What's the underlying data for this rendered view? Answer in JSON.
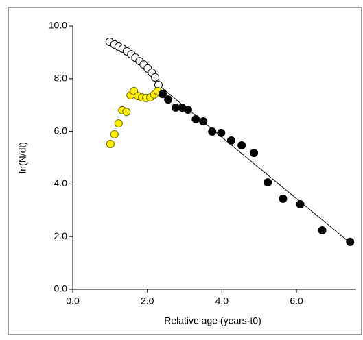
{
  "chart_data": {
    "type": "scatter",
    "xlabel": "Relative age (years-t0)",
    "ylabel": "ln(N/dt)",
    "xlim": [
      0,
      7.6
    ],
    "ylim": [
      0,
      10
    ],
    "xticks": [
      {
        "value": 0,
        "label": "0.0"
      },
      {
        "value": 2,
        "label": "2.0"
      },
      {
        "value": 4,
        "label": "4.0"
      },
      {
        "value": 6,
        "label": "6.0"
      }
    ],
    "yticks": [
      {
        "value": 0,
        "label": "0.0"
      },
      {
        "value": 2,
        "label": "2.0"
      },
      {
        "value": 4,
        "label": "4.0"
      },
      {
        "value": 6,
        "label": "6.0"
      },
      {
        "value": 8,
        "label": "8.0"
      },
      {
        "value": 10,
        "label": "10.0"
      }
    ],
    "series": [
      {
        "mode": "line",
        "color": "#000000",
        "x": [
          2.3,
          7.4
        ],
        "values": [
          7.76,
          1.81
        ]
      },
      {
        "mode": "markers",
        "color": "#ffffff",
        "edgecolor": "#000000",
        "x": [
          0.99,
          1.12,
          1.23,
          1.34,
          1.45,
          1.57,
          1.68,
          1.79,
          1.9,
          2.01,
          2.12,
          2.21,
          2.3
        ],
        "values": [
          9.4,
          9.3,
          9.22,
          9.14,
          9.04,
          8.93,
          8.8,
          8.67,
          8.54,
          8.39,
          8.23,
          8.05,
          7.76
        ]
      },
      {
        "mode": "markers",
        "color": "#ffee00",
        "edgecolor": "#6b6b00",
        "x": [
          1.01,
          1.12,
          1.23,
          1.33,
          1.44,
          1.55,
          1.64,
          1.75,
          1.86,
          1.97,
          2.08,
          2.19,
          2.28
        ],
        "values": [
          5.52,
          5.89,
          6.3,
          6.8,
          6.74,
          7.37,
          7.53,
          7.34,
          7.29,
          7.27,
          7.29,
          7.4,
          7.53
        ]
      },
      {
        "mode": "markers",
        "color": "#000000",
        "edgecolor": "#000000",
        "x": [
          2.41,
          2.56,
          2.76,
          2.93,
          3.09,
          3.3,
          3.5,
          3.74,
          3.98,
          4.25,
          4.53,
          4.86,
          5.23,
          5.64,
          6.1,
          6.69,
          7.44
        ],
        "values": [
          7.42,
          7.21,
          6.9,
          6.9,
          6.82,
          6.46,
          6.38,
          5.99,
          5.94,
          5.65,
          5.47,
          5.18,
          4.06,
          3.44,
          3.23,
          2.24,
          1.8
        ]
      }
    ]
  }
}
